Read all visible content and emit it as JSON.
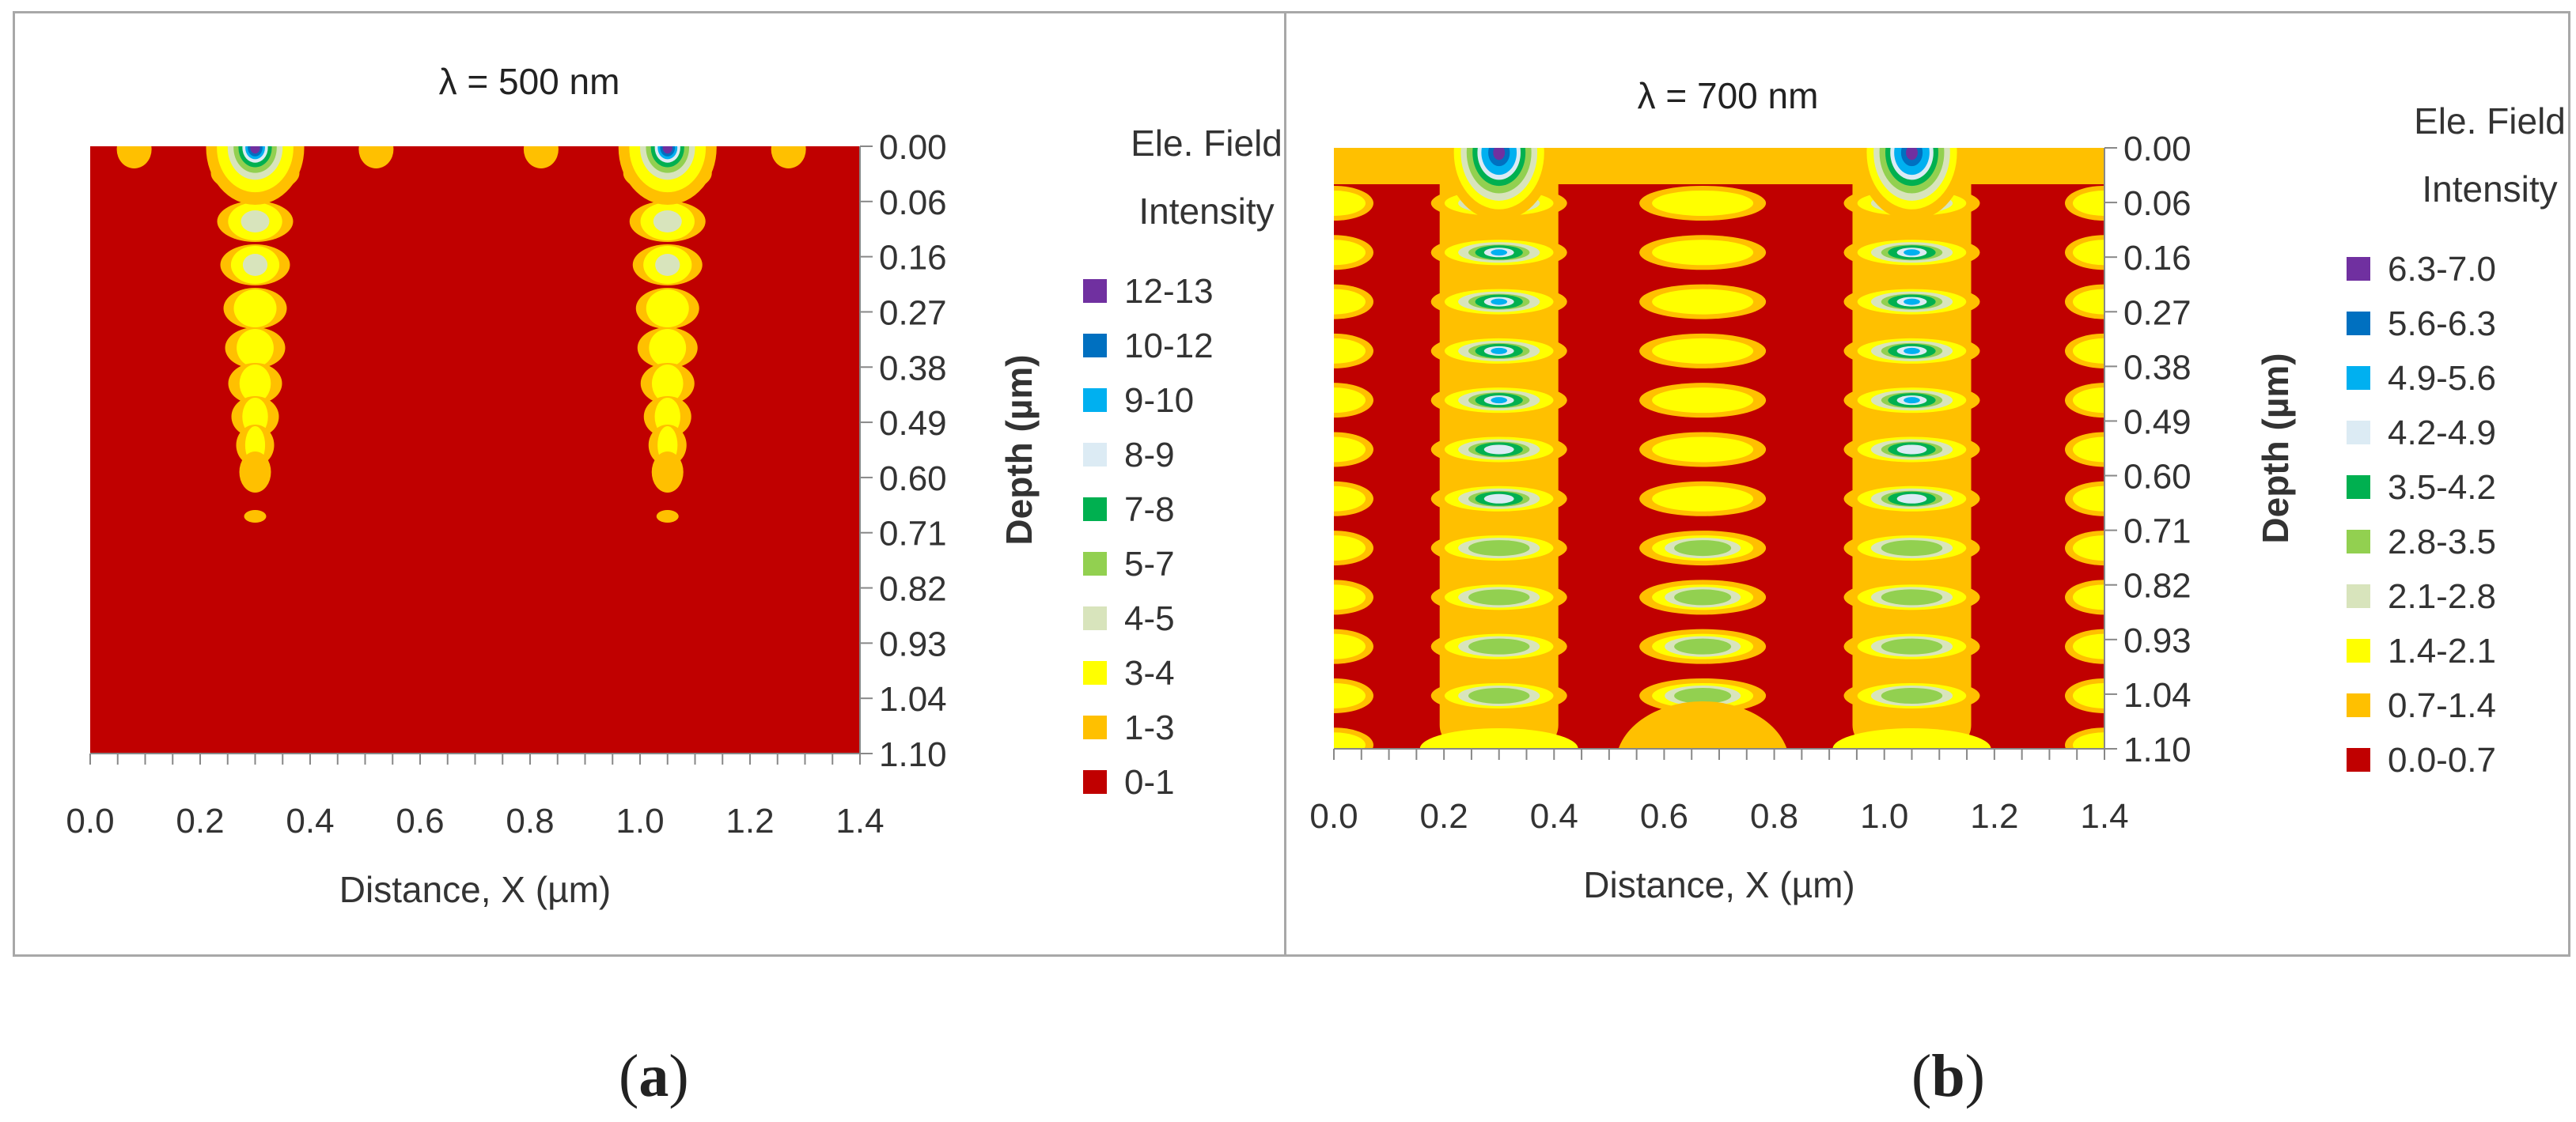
{
  "panels": [
    {
      "label": "a",
      "paren_open": "(",
      "paren_close": ")"
    },
    {
      "label": "b",
      "paren_open": "(",
      "paren_close": ")"
    }
  ],
  "chart_data": [
    {
      "type": "heatmap",
      "title": "λ = 500 nm",
      "xlabel": "Distance, X (µm)",
      "ylabel": "Depth (µm)",
      "xlim": [
        0.0,
        1.4
      ],
      "x_ticks": [
        "0.0",
        "0.2",
        "0.4",
        "0.6",
        "0.8",
        "1.0",
        "1.2",
        "1.4"
      ],
      "y_ticks": [
        "0.00",
        "0.06",
        "0.16",
        "0.27",
        "0.38",
        "0.49",
        "0.60",
        "0.71",
        "0.82",
        "0.93",
        "1.04",
        "1.10"
      ],
      "legend_title": [
        "Ele. Field",
        "Intensity"
      ],
      "legend": [
        {
          "label": "12-13",
          "color": "#7030a0"
        },
        {
          "label": "10-12",
          "color": "#0070c0"
        },
        {
          "label": "9-10",
          "color": "#00b0f0"
        },
        {
          "label": "8-9",
          "color": "#dcebf4"
        },
        {
          "label": "7-8",
          "color": "#00b050"
        },
        {
          "label": "5-7",
          "color": "#92d050"
        },
        {
          "label": "4-5",
          "color": "#d8e4bc"
        },
        {
          "label": "3-4",
          "color": "#ffff00"
        },
        {
          "label": "1-3",
          "color": "#ffc000"
        },
        {
          "label": "0-1",
          "color": "#c00000"
        }
      ],
      "hotspots": [
        {
          "x": 0.3,
          "depth": 0.0,
          "peak_level": 12.5
        },
        {
          "x": 1.05,
          "depth": 0.0,
          "peak_level": 12.5
        }
      ]
    },
    {
      "type": "heatmap",
      "title": "λ = 700 nm",
      "xlabel": "Distance, X (µm)",
      "ylabel": "Depth (µm)",
      "xlim": [
        0.0,
        1.4
      ],
      "x_ticks": [
        "0.0",
        "0.2",
        "0.4",
        "0.6",
        "0.8",
        "1.0",
        "1.2",
        "1.4"
      ],
      "y_ticks": [
        "0.00",
        "0.06",
        "0.16",
        "0.27",
        "0.38",
        "0.49",
        "0.60",
        "0.71",
        "0.82",
        "0.93",
        "1.04",
        "1.10"
      ],
      "legend_title": [
        "Ele. Field",
        "Intensity"
      ],
      "legend": [
        {
          "label": "6.3-7.0",
          "color": "#7030a0"
        },
        {
          "label": "5.6-6.3",
          "color": "#0070c0"
        },
        {
          "label": "4.9-5.6",
          "color": "#00b0f0"
        },
        {
          "label": "4.2-4.9",
          "color": "#dcebf4"
        },
        {
          "label": "3.5-4.2",
          "color": "#00b050"
        },
        {
          "label": "2.8-3.5",
          "color": "#92d050"
        },
        {
          "label": "2.1-2.8",
          "color": "#d8e4bc"
        },
        {
          "label": "1.4-2.1",
          "color": "#ffff00"
        },
        {
          "label": "0.7-1.4",
          "color": "#ffc000"
        },
        {
          "label": "0.0-0.7",
          "color": "#c00000"
        }
      ],
      "hotspots": [
        {
          "x": 0.3,
          "depth": 0.0,
          "peak_level": 5.8
        },
        {
          "x": 1.05,
          "depth": 0.0,
          "peak_level": 5.8
        }
      ]
    }
  ]
}
